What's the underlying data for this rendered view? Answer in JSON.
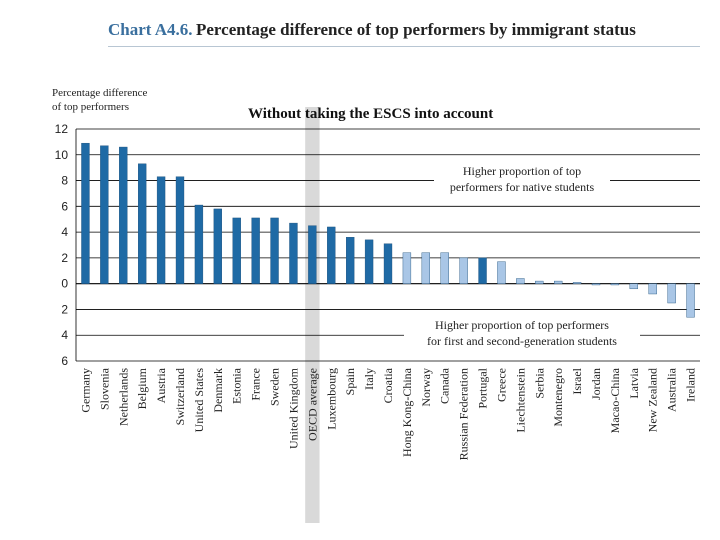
{
  "header": {
    "chart_label": "Chart A4.6.",
    "title": "Percentage difference of top performers by immigrant status"
  },
  "colors": {
    "dark_bar": "#1f6aa5",
    "light_bar": "#a9c6e6",
    "oecd_band": "#d9d9d9",
    "title_label": "#3a6f9e"
  },
  "chart_data": {
    "type": "bar",
    "title": "Without taking the ESCS into account",
    "ylabel_line1": "Percentage difference",
    "ylabel_line2": "of top performers",
    "ylim": [
      -6,
      12
    ],
    "yticks": [
      {
        "value": 12,
        "label": "12"
      },
      {
        "value": 10,
        "label": "10"
      },
      {
        "value": 8,
        "label": "8"
      },
      {
        "value": 6,
        "label": "6"
      },
      {
        "value": 4,
        "label": "4"
      },
      {
        "value": 2,
        "label": "2"
      },
      {
        "value": 0,
        "label": "0"
      },
      {
        "value": -2,
        "label": "2"
      },
      {
        "value": -4,
        "label": "4"
      },
      {
        "value": -6,
        "label": "6"
      }
    ],
    "annotation_top_line1": "Higher proportion of top",
    "annotation_top_line2": "performers for native students",
    "annotation_bottom_line1": "Higher proportion of top performers",
    "annotation_bottom_line2": "for first and second-generation students",
    "highlight": "OECD average",
    "categories": [
      "Germany",
      "Slovenia",
      "Netherlands",
      "Belgium",
      "Austria",
      "Switzerland",
      "United States",
      "Denmark",
      "Estonia",
      "France",
      "Sweden",
      "United Kingdom",
      "OECD average",
      "Luxembourg",
      "Spain",
      "Italy",
      "Croatia",
      "Hong Kong-China",
      "Norway",
      "Canada",
      "Russian Federation",
      "Portugal",
      "Greece",
      "Liechtenstein",
      "Serbia",
      "Montenegro",
      "Israel",
      "Jordan",
      "Macao-China",
      "Latvia",
      "New Zealand",
      "Australia",
      "Ireland"
    ],
    "values": [
      10.9,
      10.7,
      10.6,
      9.3,
      8.3,
      8.3,
      6.1,
      5.8,
      5.1,
      5.1,
      5.1,
      4.7,
      4.5,
      4.4,
      3.6,
      3.4,
      3.1,
      2.4,
      2.4,
      2.4,
      2.0,
      2.0,
      1.7,
      0.4,
      0.2,
      0.2,
      0.1,
      -0.1,
      -0.1,
      -0.4,
      -0.8,
      -1.5,
      -2.6
    ],
    "significant": [
      true,
      true,
      true,
      true,
      true,
      true,
      true,
      true,
      true,
      true,
      true,
      true,
      true,
      true,
      true,
      true,
      true,
      false,
      false,
      false,
      false,
      true,
      false,
      false,
      false,
      false,
      false,
      false,
      false,
      false,
      false,
      false,
      false
    ]
  }
}
